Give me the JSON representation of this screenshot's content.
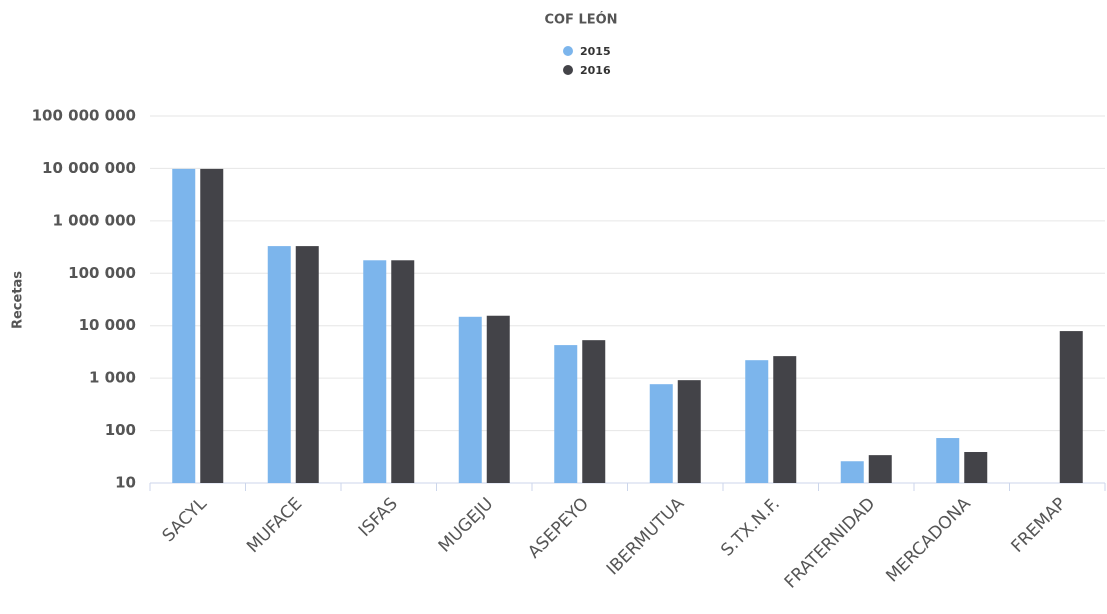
{
  "chart_data": {
    "type": "bar",
    "title": "COF LEÓN",
    "y_label": "Recetas",
    "categories": [
      "SACYL",
      "MUFACE",
      "ISFAS",
      "MUGEJU",
      "ASEPEYO",
      "IBERMUTUA",
      "S.TX.N.F.",
      "FRATERNIDAD",
      "MERCADONA",
      "FREMAP"
    ],
    "series": [
      {
        "name": "2015",
        "color": "#7cb5ec",
        "values": [
          9800000,
          330000,
          177000,
          14800,
          4270,
          767,
          2200,
          26,
          72,
          null
        ]
      },
      {
        "name": "2016",
        "color": "#434348",
        "values": [
          9800000,
          330000,
          177000,
          15500,
          5300,
          915,
          2630,
          34,
          39,
          7900
        ]
      }
    ],
    "log_y": true,
    "ylim": [
      10,
      100000000
    ],
    "yticks": [
      10,
      100,
      {
        "value": 1000,
        "label": "1 000"
      },
      {
        "value": 10000,
        "label": "10 000"
      },
      {
        "value": 100000,
        "label": "100 000"
      },
      {
        "value": 1000000,
        "label": "1 000 000"
      },
      {
        "value": 10000000,
        "label": "10 000 000"
      },
      {
        "value": 100000000,
        "label": "100 000 000"
      }
    ],
    "grid": true,
    "legend": "top"
  }
}
